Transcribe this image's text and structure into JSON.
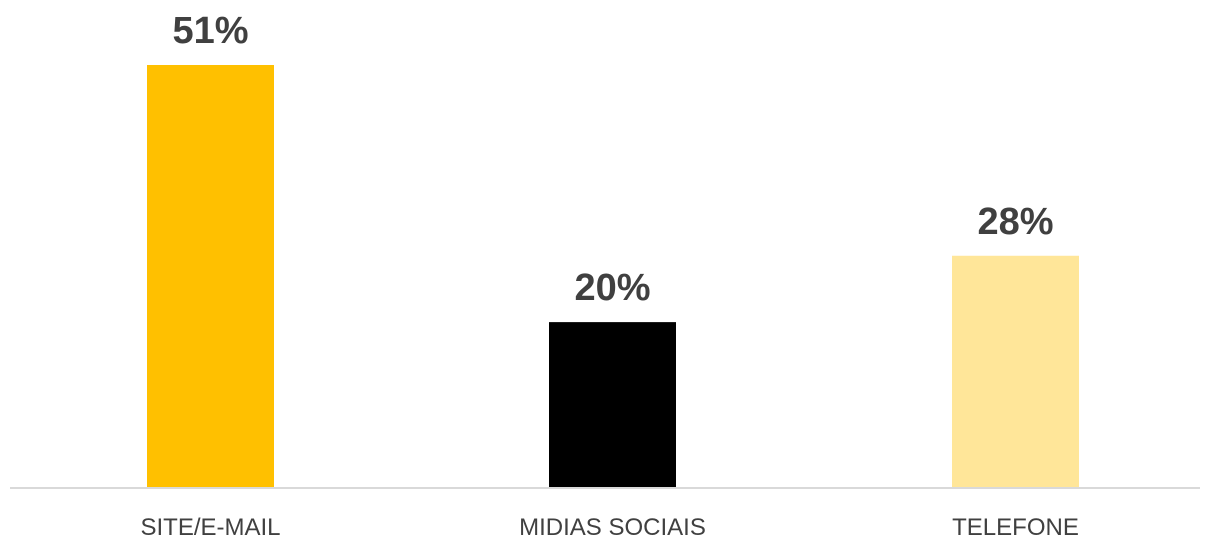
{
  "chart_data": {
    "type": "bar",
    "categories": [
      "SITE/E-MAIL",
      "MIDIAS SOCIAIS",
      "TELEFONE"
    ],
    "values": [
      51,
      20,
      28
    ],
    "data_labels": [
      "51%",
      "20%",
      "28%"
    ],
    "colors": [
      "#FFC000",
      "#000000",
      "#FFE699"
    ],
    "title": "",
    "xlabel": "",
    "ylabel": "",
    "ylim": [
      0,
      51
    ],
    "grid": false,
    "legend": "none",
    "axis_color": "#D9D9D9",
    "text_color": "#404040"
  }
}
